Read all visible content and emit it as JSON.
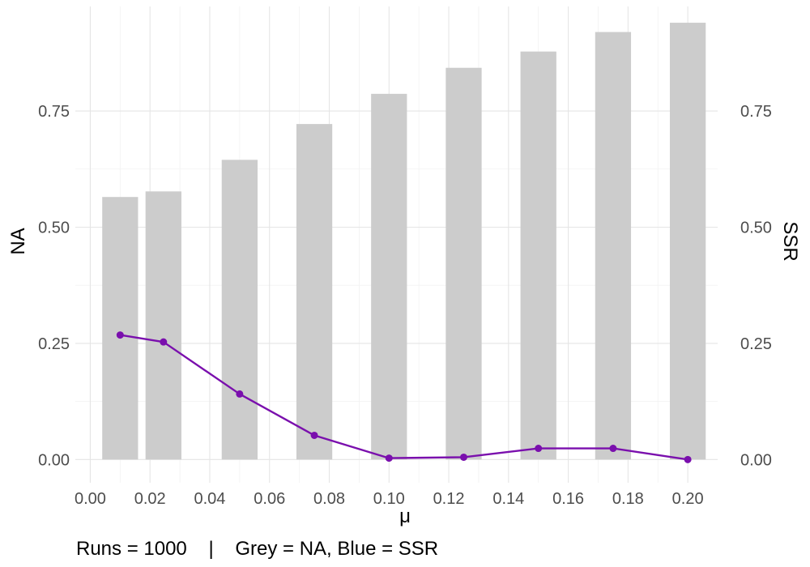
{
  "chart_data": {
    "type": "bar",
    "xlabel": "μ",
    "ylabel_left": "NA",
    "ylabel_right": "SSR",
    "caption": "Runs = 1000    |    Grey = NA, Blue = SSR",
    "xlim": [
      -0.005,
      0.21
    ],
    "ylim": [
      -0.05,
      0.975
    ],
    "x_ticks": [
      0.0,
      0.02,
      0.04,
      0.06,
      0.08,
      0.1,
      0.12,
      0.14,
      0.16,
      0.18,
      0.2
    ],
    "x_tick_labels": [
      "0.00",
      "0.02",
      "0.04",
      "0.06",
      "0.08",
      "0.10",
      "0.12",
      "0.14",
      "0.16",
      "0.18",
      "0.20"
    ],
    "y_ticks": [
      0.0,
      0.25,
      0.5,
      0.75
    ],
    "y_tick_labels": [
      "0.00",
      "0.25",
      "0.50",
      "0.75"
    ],
    "grid": true,
    "series": [
      {
        "name": "NA",
        "type": "bar",
        "color": "#cccccc",
        "bar_width": 0.012,
        "x": [
          0.01,
          0.0245,
          0.05,
          0.075,
          0.1,
          0.125,
          0.15,
          0.175,
          0.2
        ],
        "values": [
          0.565,
          0.577,
          0.645,
          0.722,
          0.787,
          0.843,
          0.878,
          0.92,
          0.94
        ]
      },
      {
        "name": "SSR",
        "type": "line",
        "color": "#7a0fad",
        "x": [
          0.01,
          0.0245,
          0.05,
          0.075,
          0.1,
          0.125,
          0.15,
          0.175,
          0.2
        ],
        "values": [
          0.268,
          0.253,
          0.141,
          0.052,
          0.003,
          0.005,
          0.024,
          0.024,
          0.0
        ]
      }
    ]
  }
}
